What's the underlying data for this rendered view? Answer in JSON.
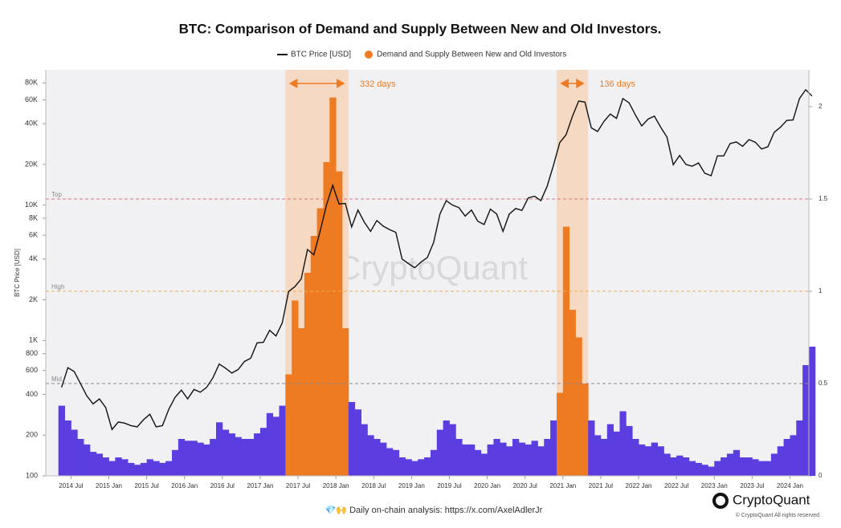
{
  "chart_data": {
    "type": "line-bar",
    "title": "BTC: Comparison of Demand and Supply Between New and Old Investors.",
    "y_label": "BTC Price [USD]",
    "watermark": "CryptoQuant",
    "footer": "💎🙌 Daily on-chain analysis: https://x.com/AxelAdlerJr",
    "brand": "CryptoQuant",
    "copyright": "© CryptoQuant All rights reserved.",
    "log_y": true,
    "x": [
      "2014-05",
      "2014-06",
      "2014-07",
      "2014-08",
      "2014-09",
      "2014-10",
      "2014-11",
      "2014-12",
      "2015-01",
      "2015-02",
      "2015-03",
      "2015-04",
      "2015-05",
      "2015-06",
      "2015-07",
      "2015-08",
      "2015-09",
      "2015-10",
      "2015-11",
      "2015-12",
      "2016-01",
      "2016-02",
      "2016-03",
      "2016-04",
      "2016-05",
      "2016-06",
      "2016-07",
      "2016-08",
      "2016-09",
      "2016-10",
      "2016-11",
      "2016-12",
      "2017-01",
      "2017-02",
      "2017-03",
      "2017-04",
      "2017-05",
      "2017-06",
      "2017-07",
      "2017-08",
      "2017-09",
      "2017-10",
      "2017-11",
      "2017-12",
      "2018-01",
      "2018-02",
      "2018-03",
      "2018-04",
      "2018-05",
      "2018-06",
      "2018-07",
      "2018-08",
      "2018-09",
      "2018-10",
      "2018-11",
      "2018-12",
      "2019-01",
      "2019-02",
      "2019-03",
      "2019-04",
      "2019-05",
      "2019-06",
      "2019-07",
      "2019-08",
      "2019-09",
      "2019-10",
      "2019-11",
      "2019-12",
      "2020-01",
      "2020-02",
      "2020-03",
      "2020-04",
      "2020-05",
      "2020-06",
      "2020-07",
      "2020-08",
      "2020-09",
      "2020-10",
      "2020-11",
      "2020-12",
      "2021-01",
      "2021-02",
      "2021-03",
      "2021-04",
      "2021-05",
      "2021-06",
      "2021-07",
      "2021-08",
      "2021-09",
      "2021-10",
      "2021-11",
      "2021-12",
      "2022-01",
      "2022-02",
      "2022-03",
      "2022-04",
      "2022-05",
      "2022-06",
      "2022-07",
      "2022-08",
      "2022-09",
      "2022-10",
      "2022-11",
      "2022-12",
      "2023-01",
      "2023-02",
      "2023-03",
      "2023-04",
      "2023-05",
      "2023-06",
      "2023-07",
      "2023-08",
      "2023-09",
      "2023-10",
      "2023-11",
      "2023-12",
      "2024-01",
      "2024-02",
      "2024-03",
      "2024-04"
    ],
    "series": [
      {
        "name": "BTC Price [USD]",
        "color": "#111111",
        "values": [
          450,
          630,
          590,
          480,
          390,
          340,
          370,
          320,
          220,
          250,
          245,
          235,
          230,
          260,
          285,
          230,
          235,
          310,
          380,
          430,
          370,
          435,
          415,
          450,
          530,
          670,
          625,
          575,
          610,
          700,
          740,
          960,
          970,
          1190,
          1080,
          1350,
          2300,
          2500,
          2850,
          4700,
          4300,
          6400,
          10000,
          14000,
          10200,
          10300,
          6900,
          9200,
          7500,
          6400,
          7700,
          7000,
          6600,
          6300,
          4000,
          3700,
          3450,
          3800,
          4100,
          5300,
          8600,
          10800,
          10000,
          9600,
          8300,
          9200,
          7600,
          7200,
          9350,
          8600,
          6400,
          8600,
          9450,
          9150,
          11300,
          11650,
          10800,
          13800,
          19700,
          29000,
          33100,
          45200,
          58800,
          57700,
          37300,
          35000,
          41500,
          47100,
          43800,
          61300,
          57000,
          46300,
          38500,
          43200,
          45500,
          37700,
          31800,
          19900,
          23300,
          20000,
          19400,
          20500,
          17200,
          16500,
          23100,
          23100,
          28500,
          29300,
          27200,
          30500,
          29200,
          26000,
          27000,
          34500,
          37700,
          42300,
          42600,
          61200,
          71300,
          64000
        ]
      },
      {
        "name": "Demand and Supply Between New and Old Investors",
        "color": "#5b3de0",
        "highlight_color": "#ee7a22",
        "axis": "y2",
        "values": [
          0.38,
          0.3,
          0.25,
          0.2,
          0.17,
          0.13,
          0.12,
          0.1,
          0.08,
          0.1,
          0.09,
          0.07,
          0.06,
          0.07,
          0.09,
          0.08,
          0.07,
          0.08,
          0.14,
          0.2,
          0.19,
          0.19,
          0.18,
          0.17,
          0.2,
          0.29,
          0.25,
          0.23,
          0.21,
          0.2,
          0.2,
          0.23,
          0.26,
          0.34,
          0.32,
          0.38,
          0.55,
          0.95,
          0.8,
          1.1,
          1.3,
          1.45,
          1.7,
          2.05,
          1.65,
          0.8,
          0.4,
          0.36,
          0.28,
          0.22,
          0.2,
          0.18,
          0.15,
          0.14,
          0.1,
          0.09,
          0.08,
          0.09,
          0.1,
          0.14,
          0.25,
          0.3,
          0.28,
          0.2,
          0.17,
          0.17,
          0.14,
          0.12,
          0.17,
          0.2,
          0.18,
          0.16,
          0.2,
          0.18,
          0.17,
          0.19,
          0.16,
          0.2,
          0.3,
          0.45,
          1.35,
          0.9,
          0.75,
          0.5,
          0.3,
          0.22,
          0.2,
          0.28,
          0.24,
          0.35,
          0.27,
          0.2,
          0.17,
          0.16,
          0.18,
          0.16,
          0.12,
          0.1,
          0.11,
          0.1,
          0.08,
          0.07,
          0.06,
          0.05,
          0.08,
          0.1,
          0.12,
          0.14,
          0.1,
          0.1,
          0.09,
          0.08,
          0.08,
          0.12,
          0.16,
          0.2,
          0.22,
          0.3,
          0.6,
          0.7
        ]
      }
    ],
    "highlights": [
      {
        "start": "2017-05",
        "end": "2018-02",
        "label": "332 days"
      },
      {
        "start": "2020-12",
        "end": "2021-04",
        "label": "136 days"
      }
    ],
    "levels": [
      {
        "name": "Top",
        "value": 1.5,
        "color": "#d9737a"
      },
      {
        "name": "High",
        "value": 1,
        "color": "#e8b04a"
      },
      {
        "name": "Mid",
        "value": 0.5,
        "color": "#8a8a8a"
      }
    ],
    "xlim": [
      "2014-03",
      "2024-04"
    ],
    "xticks": [
      {
        "value": "2014-07",
        "label": "2014 Jul"
      },
      {
        "value": "2015-01",
        "label": "2015 Jan"
      },
      {
        "value": "2015-07",
        "label": "2015 Jul"
      },
      {
        "value": "2016-01",
        "label": "2016 Jan"
      },
      {
        "value": "2016-07",
        "label": "2016 Jul"
      },
      {
        "value": "2017-01",
        "label": "2017 Jan"
      },
      {
        "value": "2017-07",
        "label": "2017 Jul"
      },
      {
        "value": "2018-01",
        "label": "2018 Jan"
      },
      {
        "value": "2018-07",
        "label": "2018 Jul"
      },
      {
        "value": "2019-01",
        "label": "2019 Jan"
      },
      {
        "value": "2019-07",
        "label": "2019 Jul"
      },
      {
        "value": "2020-01",
        "label": "2020 Jan"
      },
      {
        "value": "2020-07",
        "label": "2020 Jul"
      },
      {
        "value": "2021-01",
        "label": "2021 Jan"
      },
      {
        "value": "2021-07",
        "label": "2021 Jul"
      },
      {
        "value": "2022-01",
        "label": "2022 Jan"
      },
      {
        "value": "2022-07",
        "label": "2022 Jul"
      },
      {
        "value": "2023-01",
        "label": "2023 Jan"
      },
      {
        "value": "2023-07",
        "label": "2023 Jul"
      },
      {
        "value": "2024-01",
        "label": "2024 Jan"
      }
    ],
    "ylim": [
      100,
      100000
    ],
    "yticks": [
      100,
      200,
      400,
      600,
      800,
      {
        "value": 1000,
        "label": "1K"
      },
      {
        "value": 2000,
        "label": "2K"
      },
      {
        "value": 4000,
        "label": "4K"
      },
      {
        "value": 6000,
        "label": "6K"
      },
      {
        "value": 8000,
        "label": "8K"
      },
      {
        "value": 10000,
        "label": "10K"
      },
      {
        "value": 20000,
        "label": "20K"
      },
      {
        "value": 40000,
        "label": "40K"
      },
      {
        "value": 60000,
        "label": "60K"
      },
      {
        "value": 80000,
        "label": "80K"
      }
    ],
    "y2lim": [
      0,
      2.2
    ],
    "y2ticks": [
      0,
      0.5,
      1,
      1.5,
      2
    ]
  }
}
